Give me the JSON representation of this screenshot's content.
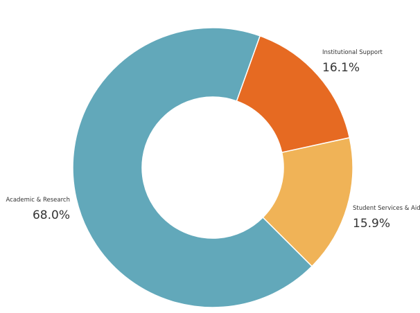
{
  "chart_data": {
    "type": "donut",
    "categories": [
      "Institutional Support",
      "Student Services & Aid",
      "Academic & Research"
    ],
    "values": [
      16.1,
      15.9,
      68.0
    ],
    "value_labels": [
      "16.1%",
      "15.9%",
      "68.0%"
    ],
    "colors": [
      "#e66a22",
      "#f0b357",
      "#62a8ba"
    ]
  }
}
